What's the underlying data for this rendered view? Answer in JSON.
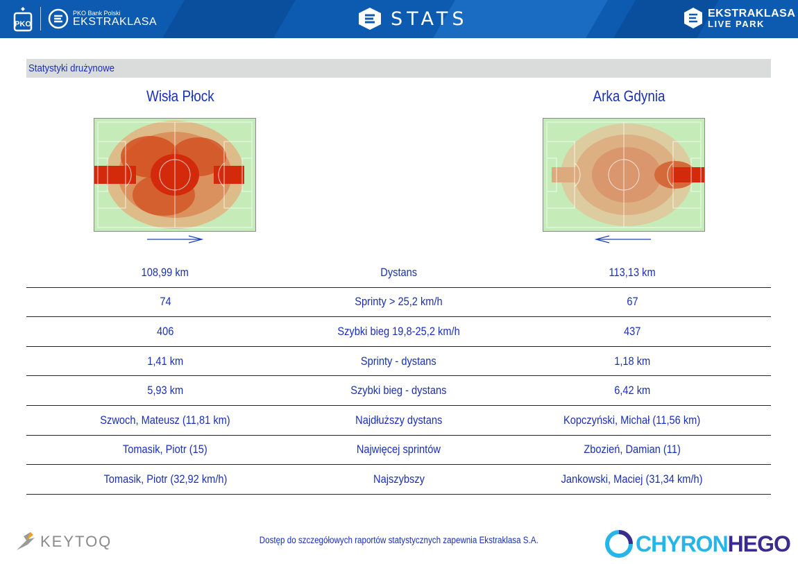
{
  "header": {
    "bank_label": "PKO Bank Polski",
    "league_label": "EKSTRAKLASA",
    "center_title": "STATS",
    "right_logo_line1": "EKSTRAKLASA",
    "right_logo_line2": "LIVE PARK"
  },
  "section": {
    "title": "Statystyki drużynowe"
  },
  "teams": {
    "home": {
      "name": "Wisła Płock",
      "attack_direction": "right"
    },
    "away": {
      "name": "Arka Gdynia",
      "attack_direction": "left"
    }
  },
  "stats": [
    {
      "home": "108,99 km",
      "label": "Dystans",
      "away": "113,13 km"
    },
    {
      "home": "74",
      "label": "Sprinty > 25,2 km/h",
      "away": "67"
    },
    {
      "home": "406",
      "label": "Szybki bieg 19,8-25,2 km/h",
      "away": "437"
    },
    {
      "home": "1,41 km",
      "label": "Sprinty - dystans",
      "away": "1,18 km"
    },
    {
      "home": "5,93 km",
      "label": "Szybki bieg - dystans",
      "away": "6,42 km"
    },
    {
      "home": "Szwoch, Mateusz (11,81 km)",
      "label": "Najdłuższy dystans",
      "away": "Kopczyński, Michał (11,56 km)"
    },
    {
      "home": "Tomasik, Piotr (15)",
      "label": "Najwięcej sprintów",
      "away": "Zbozień, Damian (11)"
    },
    {
      "home": "Tomasik, Piotr (32,92 km/h)",
      "label": "Najszybszy",
      "away": "Jankowski, Maciej (31,34 km/h)"
    }
  ],
  "footer": {
    "note": "Dostęp do szczegółowych raportów statystycznych zapewnia Ekstraklasa S.A.",
    "left_logo": "KEYTOQ",
    "right_logo_part1": "CHYRON",
    "right_logo_part2": "HEGO"
  },
  "colors": {
    "header_blue": "#0c5bb0",
    "text_blue": "#1a2fb8",
    "heat_high": "#d42a0c",
    "pitch_green": "#c5ecb8"
  }
}
